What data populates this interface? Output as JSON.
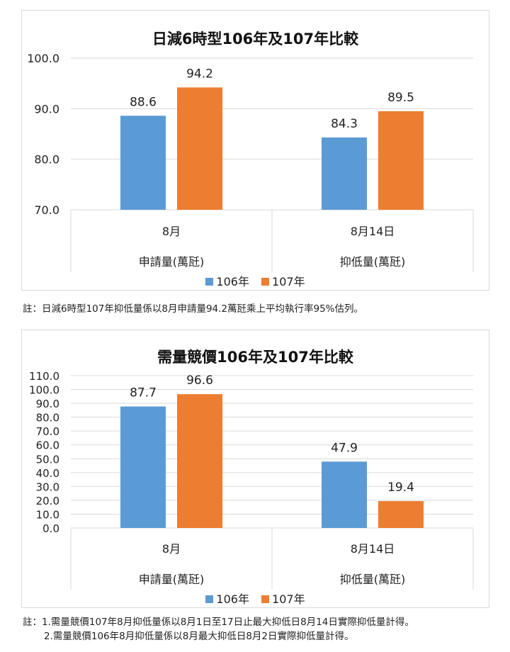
{
  "colors": {
    "s106": "#5b9bd5",
    "s107": "#ed7d31",
    "grid": "#d9d9d9",
    "text": "#222222"
  },
  "chart_data": [
    {
      "type": "bar",
      "title": "日減6時型106年及107年比較",
      "groups": [
        {
          "label": "8月",
          "sublabel": "申請量(萬瓩)"
        },
        {
          "label": "8月14日",
          "sublabel": "抑低量(萬瓩)"
        }
      ],
      "series": [
        {
          "name": "106年",
          "values": [
            88.6,
            84.3
          ]
        },
        {
          "name": "107年",
          "values": [
            94.2,
            89.5
          ]
        }
      ],
      "ylim": [
        70,
        100
      ],
      "yticks": [
        "70.0",
        "80.0",
        "90.0",
        "100.0"
      ],
      "grid": true,
      "legend_position": "bottom",
      "note": "註：日減6時型107年抑低量係以8月申請量94.2萬瓩乘上平均執行率95%估列。"
    },
    {
      "type": "bar",
      "title": "需量競價106年及107年比較",
      "groups": [
        {
          "label": "8月",
          "sublabel": "申請量(萬瓩)"
        },
        {
          "label": "8月14日",
          "sublabel": "抑低量(萬瓩)"
        }
      ],
      "series": [
        {
          "name": "106年",
          "values": [
            87.7,
            47.9
          ]
        },
        {
          "name": "107年",
          "values": [
            96.6,
            19.4
          ]
        }
      ],
      "ylim": [
        0,
        110
      ],
      "yticks": [
        "0.0",
        "10.0",
        "20.0",
        "30.0",
        "40.0",
        "50.0",
        "60.0",
        "70.0",
        "80.0",
        "90.0",
        "100.0",
        "110.0"
      ],
      "grid": true,
      "legend_position": "bottom",
      "note": "註：1.需量競價107年8月抑低量係以8月1日至17日止最大抑低日8月14日實際抑低量計得。",
      "note2": "2.需量競價106年8月抑低量係以8月最大抑低日8月2日實際抑低量計得。"
    }
  ]
}
